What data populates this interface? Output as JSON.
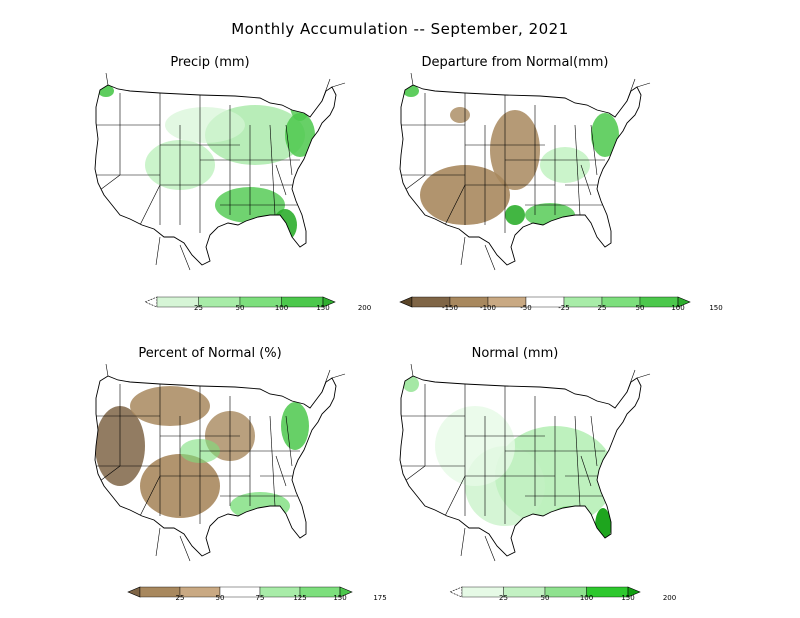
{
  "title": "Monthly Accumulation -- September, 2021",
  "panels": [
    {
      "id": "precip",
      "title": "Precip (mm)",
      "scale": {
        "colors": [
          "#ffffff",
          "#d6f5d6",
          "#a8eca8",
          "#7ddf7d",
          "#4cc84c",
          "#2eae2e"
        ],
        "ticks": [
          "25",
          "50",
          "100",
          "150",
          "200"
        ],
        "dashed_low": true
      }
    },
    {
      "id": "departure",
      "title": "Departure from Normal(mm)",
      "scale": {
        "colors": [
          "#5a4528",
          "#7f6546",
          "#a8885e",
          "#c9a983",
          "#ffffff",
          "#a8eca8",
          "#7ddf7d",
          "#4cc84c",
          "#2eae2e"
        ],
        "ticks": [
          "-150",
          "-100",
          "-50",
          "-25",
          "25",
          "50",
          "100",
          "150"
        ],
        "dashed_low": false
      }
    },
    {
      "id": "percent",
      "title": "Percent of Normal (%)",
      "scale": {
        "colors": [
          "#7f6546",
          "#a8885e",
          "#c9a983",
          "#ffffff",
          "#a8eca8",
          "#7ddf7d",
          "#4cc84c"
        ],
        "ticks": [
          "25",
          "50",
          "75",
          "125",
          "150",
          "175"
        ],
        "dashed_low": false
      }
    },
    {
      "id": "normal",
      "title": "Normal (mm)",
      "scale": {
        "colors": [
          "#ffffff",
          "#e6fae6",
          "#c3f1c3",
          "#8fe28f",
          "#2ec82e",
          "#12a012"
        ],
        "ticks": [
          "25",
          "50",
          "100",
          "150",
          "200"
        ],
        "dashed_low": true
      }
    }
  ]
}
